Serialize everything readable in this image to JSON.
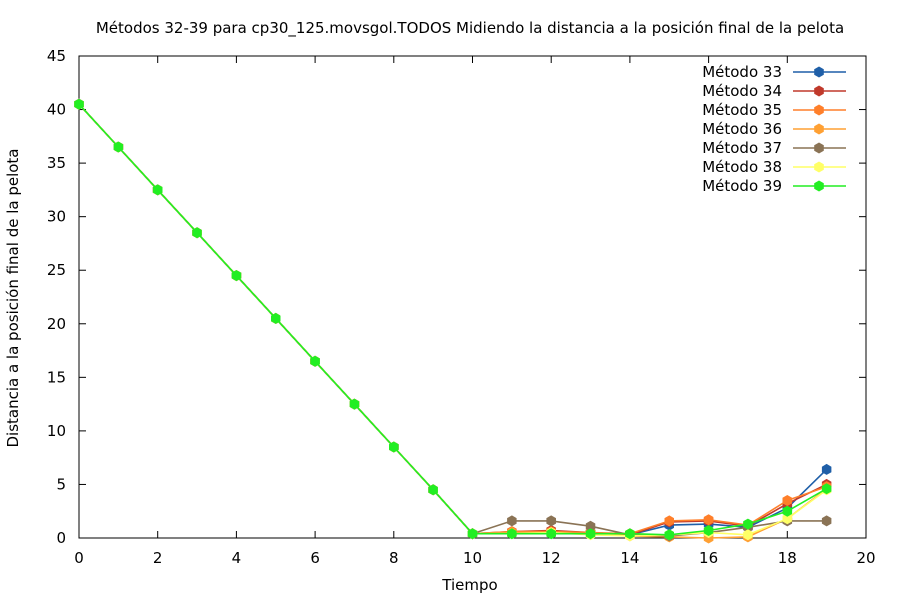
{
  "chart_data": {
    "type": "line",
    "title": "Métodos 32-39 para cp30_125.movsgol.TODOS Midiendo la distancia a la posición final de la pelota",
    "xlabel": "Tiempo",
    "ylabel": "Distancia a la posición final de la pelota",
    "xlim": [
      0,
      20
    ],
    "ylim": [
      0,
      45
    ],
    "xticks": [
      0,
      2,
      4,
      6,
      8,
      10,
      12,
      14,
      16,
      18,
      20
    ],
    "yticks": [
      0,
      5,
      10,
      15,
      20,
      25,
      30,
      35,
      40,
      45
    ],
    "grid": false,
    "legend_position": "top-right",
    "x": [
      0,
      1,
      2,
      3,
      4,
      5,
      6,
      7,
      8,
      9,
      10,
      11,
      12,
      13,
      14,
      15,
      16,
      17,
      18,
      19
    ],
    "series": [
      {
        "name": "Método 33",
        "color": "#1f5fa8",
        "values": [
          40.5,
          36.5,
          32.5,
          28.5,
          24.5,
          20.5,
          16.5,
          12.5,
          8.5,
          4.5,
          0.4,
          0.5,
          0.6,
          0.5,
          0.3,
          1.2,
          1.3,
          1.0,
          2.8,
          6.4
        ]
      },
      {
        "name": "Método 34",
        "color": "#c0392b",
        "values": [
          40.5,
          36.5,
          32.5,
          28.5,
          24.5,
          20.5,
          16.5,
          12.5,
          8.5,
          4.5,
          0.4,
          0.6,
          0.7,
          0.5,
          0.3,
          1.5,
          1.6,
          1.1,
          3.2,
          5.0
        ]
      },
      {
        "name": "Método 35",
        "color": "#ff7f2a",
        "values": [
          40.5,
          36.5,
          32.5,
          28.5,
          24.5,
          20.5,
          16.5,
          12.5,
          8.5,
          4.5,
          0.4,
          0.6,
          0.6,
          0.5,
          0.4,
          1.6,
          1.7,
          1.2,
          3.5,
          4.8
        ]
      },
      {
        "name": "Método 36",
        "color": "#ffa033",
        "values": [
          40.5,
          36.5,
          32.5,
          28.5,
          24.5,
          20.5,
          16.5,
          12.5,
          8.5,
          4.5,
          0.4,
          0.5,
          0.5,
          0.4,
          0.2,
          0.1,
          0.0,
          0.1,
          1.8,
          4.6
        ]
      },
      {
        "name": "Método 37",
        "color": "#8a7355",
        "values": [
          40.5,
          36.5,
          32.5,
          28.5,
          24.5,
          20.5,
          16.5,
          12.5,
          8.5,
          4.5,
          0.4,
          1.6,
          1.6,
          1.1,
          0.3,
          0.2,
          0.5,
          1.0,
          1.6,
          1.6
        ]
      },
      {
        "name": "Método 38",
        "color": "#ffff66",
        "values": [
          40.5,
          36.5,
          32.5,
          28.5,
          24.5,
          20.5,
          16.5,
          12.5,
          8.5,
          4.5,
          0.4,
          0.4,
          0.5,
          0.3,
          0.2,
          0.3,
          0.5,
          0.3,
          1.8,
          4.5
        ]
      },
      {
        "name": "Método 39",
        "color": "#22ee22",
        "values": [
          40.5,
          36.5,
          32.5,
          28.5,
          24.5,
          20.5,
          16.5,
          12.5,
          8.5,
          4.5,
          0.4,
          0.4,
          0.4,
          0.4,
          0.4,
          0.3,
          0.7,
          1.3,
          2.5,
          4.6
        ]
      }
    ]
  }
}
